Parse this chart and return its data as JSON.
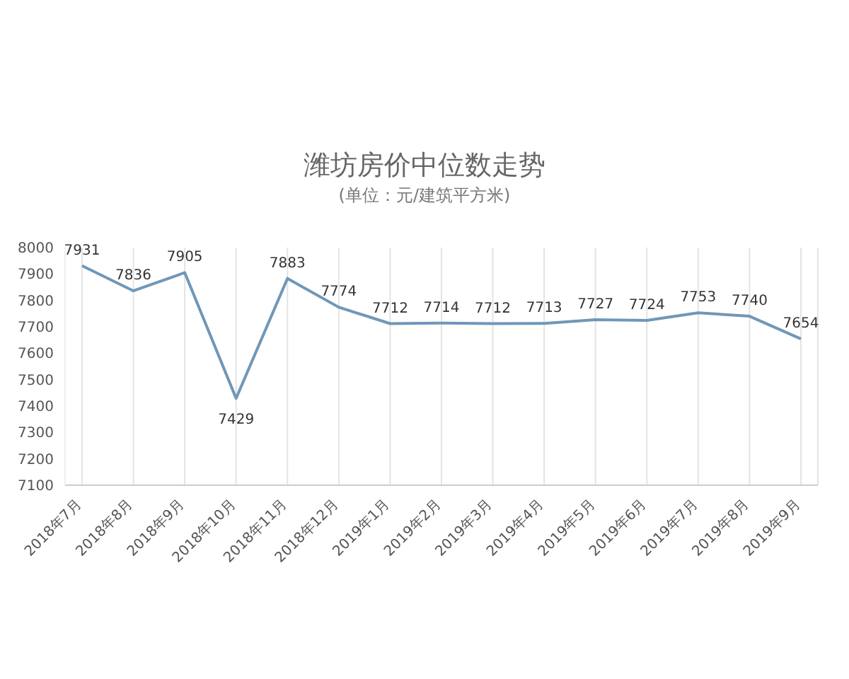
{
  "chart_data": {
    "type": "line",
    "title": "潍坊房价中位数走势",
    "subtitle": "(单位：元/建筑平方米)",
    "categories": [
      "2018年7月",
      "2018年8月",
      "2018年9月",
      "2018年10月",
      "2018年11月",
      "2018年12月",
      "2019年1月",
      "2019年2月",
      "2019年3月",
      "2019年4月",
      "2019年5月",
      "2019年6月",
      "2019年7月",
      "2019年8月",
      "2019年9月"
    ],
    "series": [
      {
        "color": "#6f97b8",
        "values": [
          7931,
          7836,
          7905,
          7429,
          7883,
          7774,
          7712,
          7714,
          7712,
          7713,
          7727,
          7724,
          7753,
          7740,
          7654
        ]
      }
    ],
    "ylim": [
      7100,
      8000
    ],
    "yticks": [
      7100,
      7200,
      7300,
      7400,
      7500,
      7600,
      7700,
      7800,
      7900,
      8000
    ],
    "grid": "x",
    "data_labels": true,
    "marker": "none",
    "legend": false
  }
}
